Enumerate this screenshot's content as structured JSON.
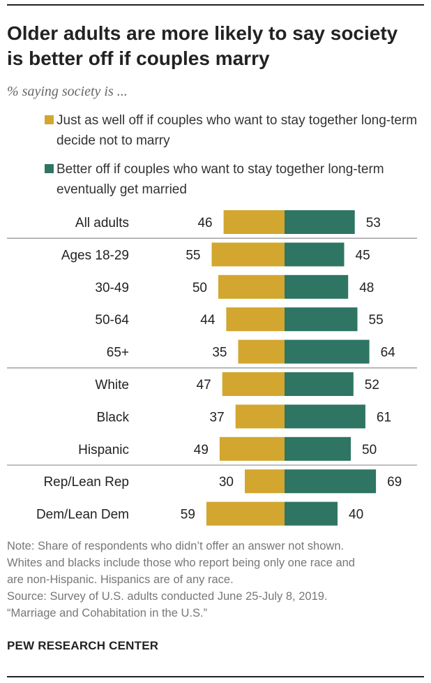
{
  "title": "Older adults are more likely to say society is better off if couples marry",
  "subtitle": "% saying society is ...",
  "colors": {
    "series1": "#d3a62f",
    "series2": "#2e7563",
    "divider": "#999999"
  },
  "legend": [
    {
      "label": "Just as well off if couples who want to stay together long-term decide not to marry"
    },
    {
      "label": "Better off if couples who want to stay together long-term eventually get married"
    }
  ],
  "chart_data": {
    "type": "bar",
    "orientation": "horizontal-diverging",
    "categories": [
      "All adults",
      "Ages 18-29",
      "30-49",
      "50-64",
      "65+",
      "White",
      "Black",
      "Hispanic",
      "Rep/Lean Rep",
      "Dem/Lean Dem"
    ],
    "groups": [
      [
        0
      ],
      [
        1,
        2,
        3,
        4
      ],
      [
        5,
        6,
        7
      ],
      [
        8,
        9
      ]
    ],
    "series": [
      {
        "name": "Just as well off if couples who want to stay together long-term decide not to marry",
        "values": [
          46,
          55,
          50,
          44,
          35,
          47,
          37,
          49,
          30,
          59
        ]
      },
      {
        "name": "Better off if couples who want to stay together long-term eventually get married",
        "values": [
          53,
          45,
          48,
          55,
          64,
          52,
          61,
          50,
          69,
          40
        ]
      }
    ],
    "xlim": [
      0,
      100
    ],
    "grid": false,
    "legend_position": "top"
  },
  "notes": [
    "Note: Share of respondents who didn’t offer an answer not shown.",
    "Whites and blacks include those who report being only one race and",
    "are non-Hispanic. Hispanics are of any race.",
    "Source: Survey of U.S. adults conducted June 25-July 8, 2019.",
    "“Marriage and Cohabitation in the U.S.”"
  ],
  "brand": "PEW RESEARCH CENTER"
}
